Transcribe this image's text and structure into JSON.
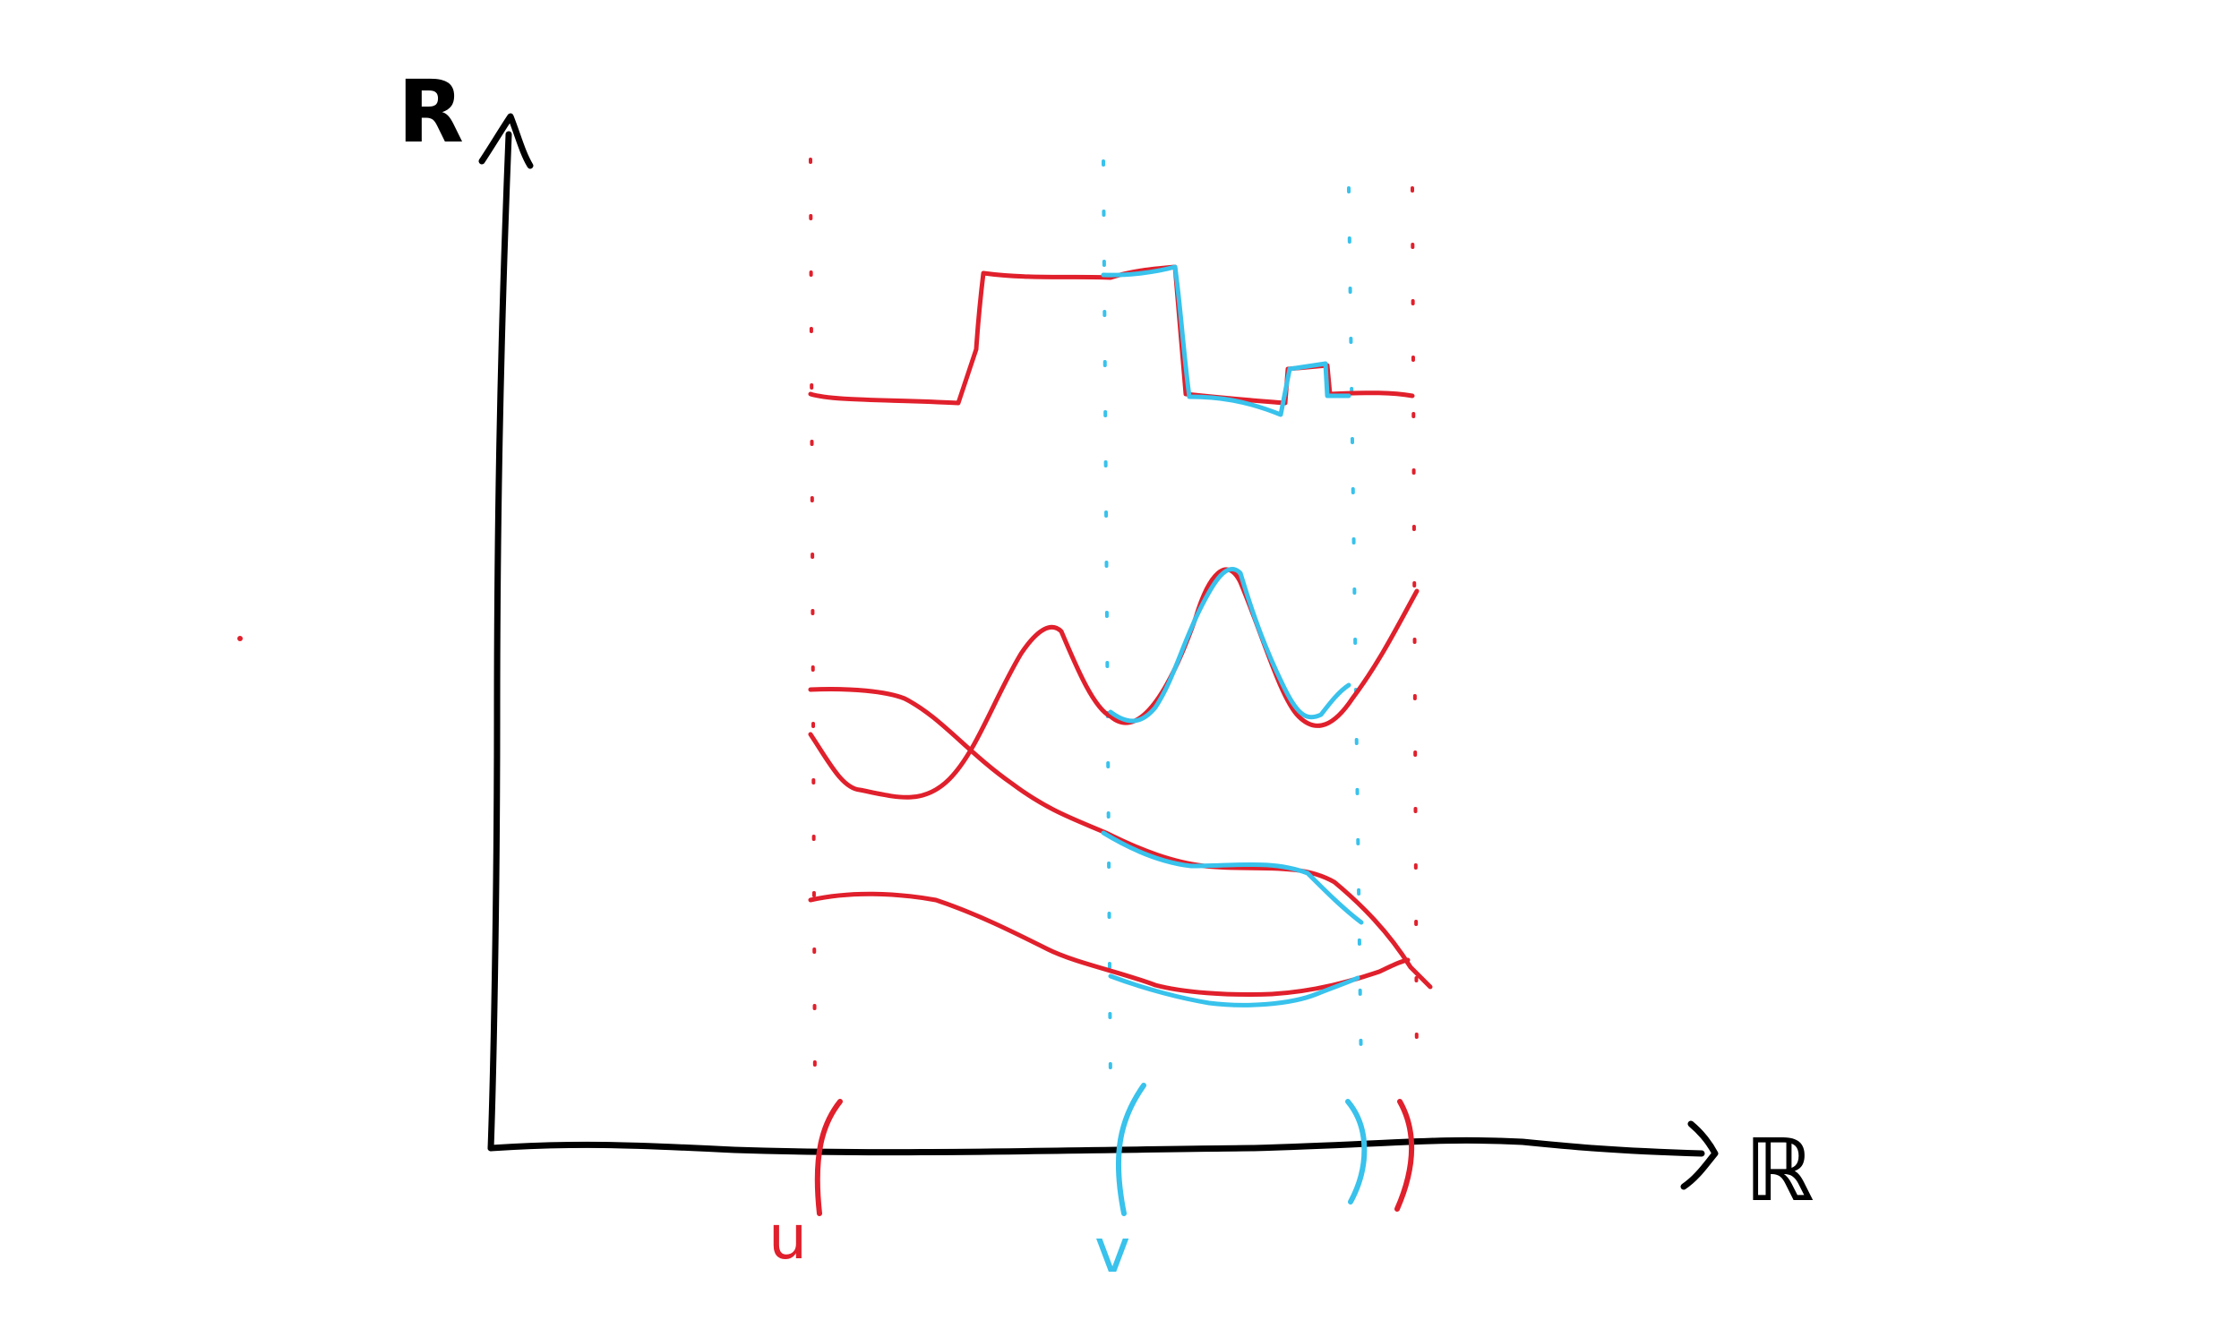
{
  "labels": {
    "y_axis": "R",
    "x_axis": "ℝ",
    "interval_u": "u",
    "interval_v": "v"
  },
  "colors": {
    "axis": "#000000",
    "u_color": "#e0202c",
    "v_color": "#38c2ec"
  },
  "icons": {
    "y_arrow": "arrow-up-icon",
    "x_arrow": "arrow-right-icon"
  }
}
